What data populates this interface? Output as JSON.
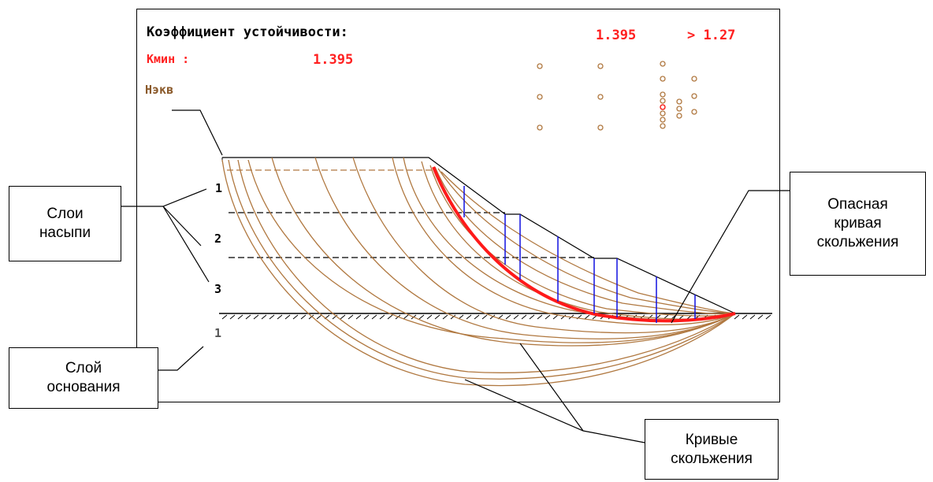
{
  "header": {
    "title": "Коэффициент устойчивости:",
    "value": "1.395",
    "comparison": "> 1.27",
    "kmin_label": "Кмин :",
    "kmin_value": "1.395",
    "heq_label": "Нэкв"
  },
  "layers": {
    "embankment": [
      "1",
      "2",
      "3"
    ],
    "base": "1"
  },
  "callouts": {
    "embankment_layers": [
      "Слои",
      "насыпи"
    ],
    "base_layer": [
      "Слой",
      "основания"
    ],
    "critical_surface": [
      "Опасная",
      "кривая",
      "скольжения"
    ],
    "slip_surfaces": [
      "Кривые",
      "скольжения"
    ]
  },
  "colors": {
    "title": "#000000",
    "values": "#ff2020",
    "heq": "#8b5a2b",
    "slip_curves": "#b07840",
    "critical_curve": "#ff1a1a",
    "slices": "#1010e0"
  },
  "dot_grid_icon": "circle-marker-icon"
}
